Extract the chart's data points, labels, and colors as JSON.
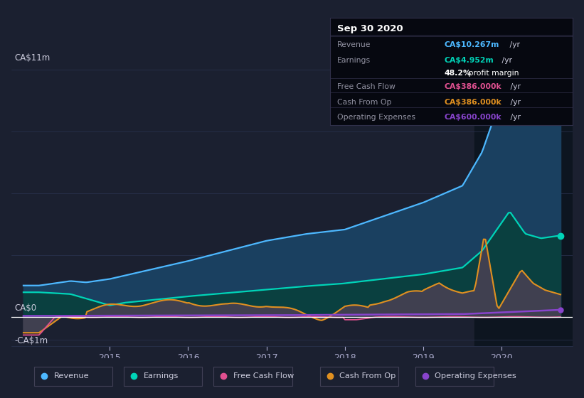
{
  "bg_color": "#1b2030",
  "plot_bg_color": "#1b2030",
  "grid_color": "#2a3350",
  "revenue_color": "#4db8ff",
  "earnings_color": "#00d4b8",
  "fcf_color": "#e05090",
  "cashfromop_color": "#e09020",
  "opex_color": "#8844cc",
  "revenue_fill": "#1a4060",
  "earnings_fill": "#0a4040",
  "cashfromop_fill": "#555060",
  "ylim": [
    -1.3,
    12.5
  ],
  "xlim": [
    2013.75,
    2020.9
  ],
  "highlight_x_start": 2019.65,
  "highlight_x_end": 2020.9,
  "legend_labels": [
    "Revenue",
    "Earnings",
    "Free Cash Flow",
    "Cash From Op",
    "Operating Expenses"
  ],
  "tooltip_title": "Sep 30 2020",
  "tooltip_rows": [
    {
      "label": "Revenue",
      "value": "CA$10.267m",
      "unit": " /yr",
      "color": "#4db8ff"
    },
    {
      "label": "Earnings",
      "value": "CA$4.952m",
      "unit": " /yr",
      "color": "#00d4b8"
    },
    {
      "label": "",
      "value": "48.2%",
      "unit": " profit margin",
      "color": "#ffffff"
    },
    {
      "label": "Free Cash Flow",
      "value": "CA$386.000k",
      "unit": " /yr",
      "color": "#e05090"
    },
    {
      "label": "Cash From Op",
      "value": "CA$386.000k",
      "unit": " /yr",
      "color": "#e09020"
    },
    {
      "label": "Operating Expenses",
      "value": "CA$600.000k",
      "unit": " /yr",
      "color": "#8844cc"
    }
  ]
}
